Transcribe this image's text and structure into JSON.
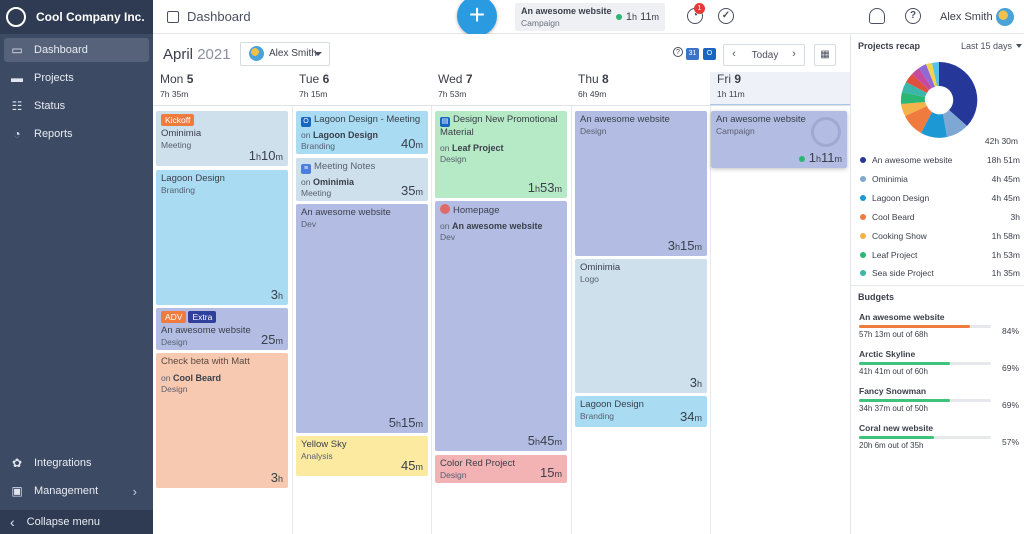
{
  "sidebar": {
    "company": "Cool Company Inc.",
    "items": [
      {
        "label": "Dashboard",
        "icon": "dashboard-icon"
      },
      {
        "label": "Projects",
        "icon": "folder-icon"
      },
      {
        "label": "Status",
        "icon": "status-icon"
      },
      {
        "label": "Reports",
        "icon": "reports-icon"
      }
    ],
    "bottom_items": [
      {
        "label": "Integrations",
        "icon": "integrations-icon"
      },
      {
        "label": "Management",
        "icon": "briefcase-icon"
      }
    ],
    "collapse_label": "Collapse menu"
  },
  "topbar": {
    "page_title": "Dashboard",
    "timer": {
      "project": "An awesome website",
      "task": "Campaign",
      "time_h": "1",
      "time_m": "11"
    },
    "notification_count": "1",
    "user_name": "Alex Smith"
  },
  "calendar": {
    "month": "April",
    "year": "2021",
    "selected_user": "Alex Smith",
    "today_label": "Today",
    "days": [
      {
        "name": "Mon",
        "num": "5",
        "total": "7h 35m"
      },
      {
        "name": "Tue",
        "num": "6",
        "total": "7h 15m"
      },
      {
        "name": "Wed",
        "num": "7",
        "total": "7h 53m"
      },
      {
        "name": "Thu",
        "num": "8",
        "total": "6h 49m"
      },
      {
        "name": "Fri",
        "num": "9",
        "total": "1h 11m"
      }
    ],
    "events": {
      "mon": [
        {
          "tag": "Kickoff",
          "title": "Ominimia",
          "category": "Meeting",
          "h": "1",
          "m": "10"
        },
        {
          "title": "Lagoon Design",
          "category": "Branding",
          "h": "3"
        },
        {
          "tags": [
            "ADV",
            "Extra"
          ],
          "title": "An awesome website",
          "category": "Design",
          "m": "25"
        },
        {
          "title": "Check beta with Matt",
          "on": "on",
          "project": "Cool Beard",
          "category": "Design",
          "h": "3"
        }
      ],
      "tue": [
        {
          "title": "Lagoon Design - Meeting",
          "on": "on",
          "project": "Lagoon Design",
          "category": "Branding",
          "m": "40"
        },
        {
          "title": "Meeting Notes",
          "on": "on",
          "project": "Ominimia",
          "category": "Meeting",
          "m": "35"
        },
        {
          "title": "An awesome website",
          "category": "Dev",
          "h": "5",
          "m": "15"
        },
        {
          "title": "Yellow Sky",
          "category": "Analysis",
          "m": "45"
        }
      ],
      "wed": [
        {
          "title": "Design New Promotional Material",
          "on": "on",
          "project": "Leaf Project",
          "category": "Design",
          "h": "1",
          "m": "53"
        },
        {
          "title": "Homepage",
          "on": "on",
          "project": "An awesome website",
          "category": "Dev",
          "h": "5",
          "m": "45"
        },
        {
          "title": "Color Red Project",
          "category": "Design",
          "m": "15"
        }
      ],
      "thu": [
        {
          "title": "An awesome website",
          "category": "Design",
          "h": "3",
          "m": "15"
        },
        {
          "title": "Ominimia",
          "category": "Logo",
          "h": "3"
        },
        {
          "title": "Lagoon Design",
          "category": "Branding",
          "m": "34"
        }
      ],
      "fri": [
        {
          "title": "An awesome website",
          "category": "Campaign",
          "h": "1",
          "m": "11"
        }
      ]
    }
  },
  "projects_recap": {
    "title": "Projects recap",
    "filter": "Last 15 days",
    "total": "42h 30m",
    "items": [
      {
        "name": "An awesome website",
        "value": "18h 51m",
        "color": "#25389a"
      },
      {
        "name": "Ominimia",
        "value": "4h 45m",
        "color": "#7ea7d4"
      },
      {
        "name": "Lagoon Design",
        "value": "4h 45m",
        "color": "#1c98d4"
      },
      {
        "name": "Cool Beard",
        "value": "3h",
        "color": "#f07b3f"
      },
      {
        "name": "Cooking Show",
        "value": "1h 58m",
        "color": "#f4b24a"
      },
      {
        "name": "Leaf Project",
        "value": "1h 53m",
        "color": "#2bb673"
      },
      {
        "name": "Sea side Project",
        "value": "1h 35m",
        "color": "#3bb6a8"
      }
    ]
  },
  "budgets": {
    "title": "Budgets",
    "items": [
      {
        "name": "An awesome website",
        "used": "57h 13m out of 68h",
        "pct": "84%",
        "fraction": 0.84,
        "color": "#f07b3f"
      },
      {
        "name": "Arctic Skyline",
        "used": "41h 41m out of 60h",
        "pct": "69%",
        "fraction": 0.69,
        "color": "#3ec47a"
      },
      {
        "name": "Fancy Snowman",
        "used": "34h 37m out of 50h",
        "pct": "69%",
        "fraction": 0.69,
        "color": "#3ec47a"
      },
      {
        "name": "Coral new website",
        "used": "20h 6m out of 35h",
        "pct": "57%",
        "fraction": 0.57,
        "color": "#3ec47a"
      }
    ]
  }
}
